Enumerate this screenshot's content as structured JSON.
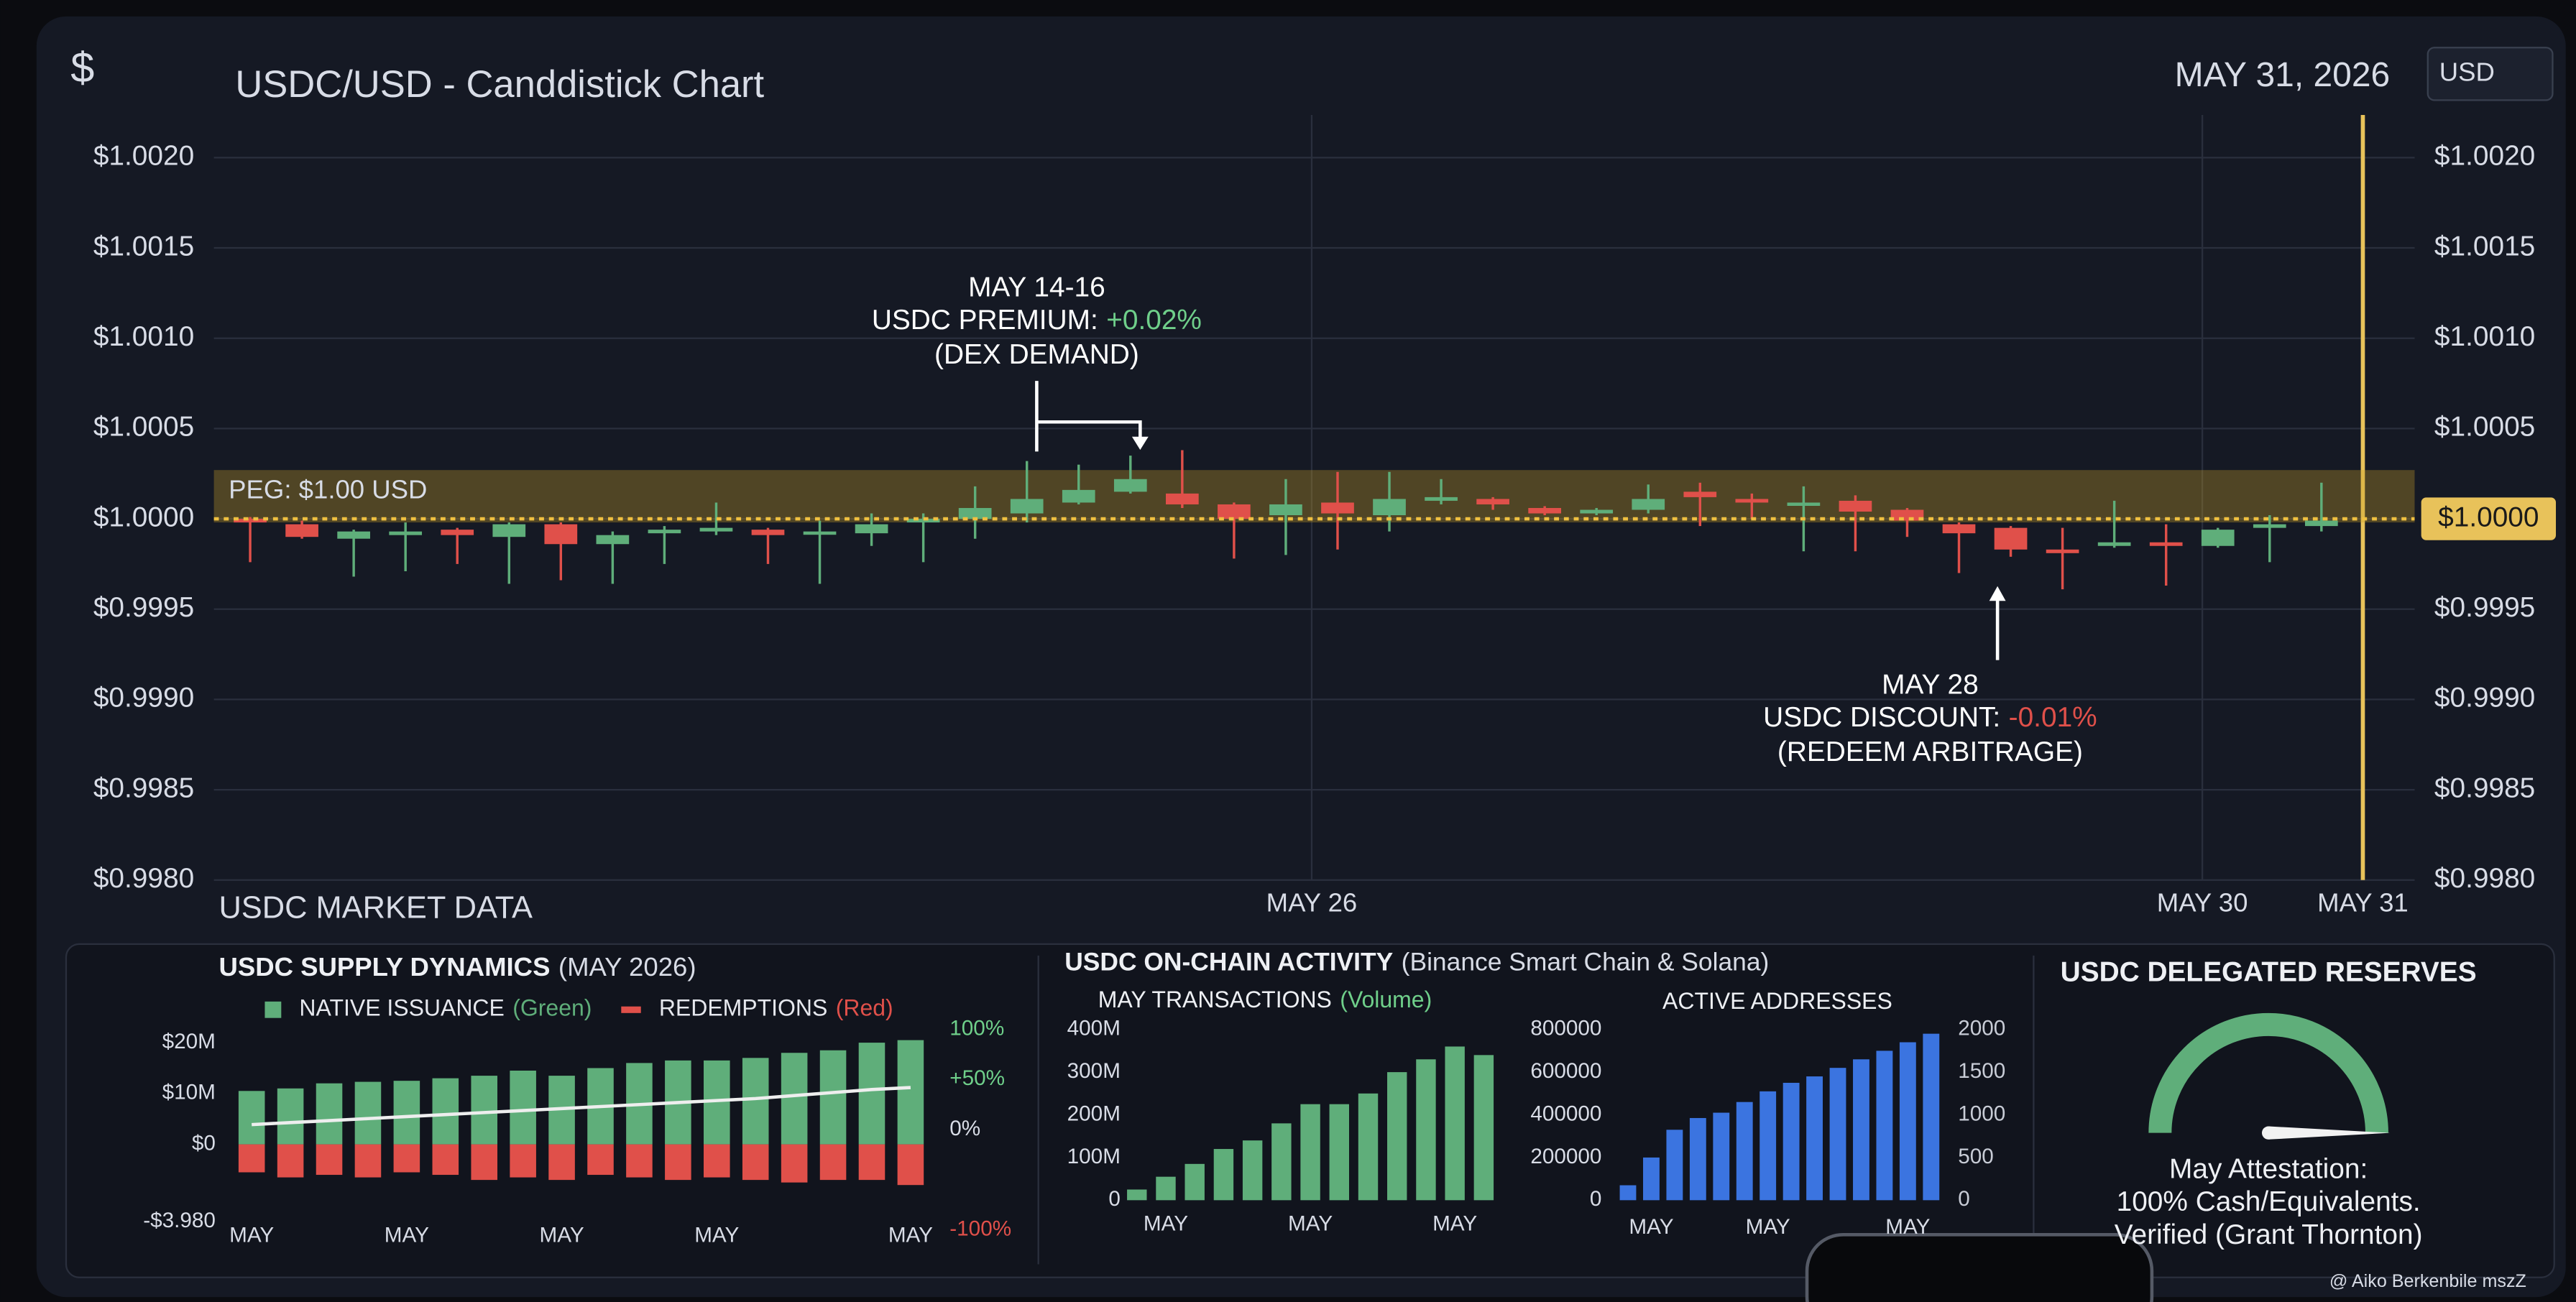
{
  "header": {
    "icon": "$",
    "title": "USDC/USD - Canddistick Chart",
    "date": "MAY 31, 2026",
    "currency": "USD"
  },
  "chart_data": [
    {
      "type": "candlestick",
      "categories": [
        null,
        null,
        null,
        null,
        null,
        null,
        null,
        null,
        null,
        null,
        null,
        null,
        null,
        null,
        null,
        null,
        null,
        null,
        null,
        null,
        null,
        null,
        null,
        null,
        null,
        null,
        null,
        null,
        null,
        null,
        null,
        null,
        null,
        null,
        null,
        null,
        null,
        null,
        null,
        null,
        null
      ],
      "open": [
        1.0,
        0.99997,
        0.99989,
        0.99991,
        0.99994,
        0.9999,
        0.99997,
        0.99986,
        0.99992,
        0.99993,
        0.99994,
        0.99992,
        0.99992,
        0.99998,
        1.0,
        1.00003,
        1.00009,
        1.00015,
        1.00014,
        1.00008,
        1.00002,
        1.00009,
        1.00002,
        1.0001,
        1.00011,
        1.00006,
        1.00003,
        1.00005,
        1.00015,
        1.00011,
        1.00008,
        1.0001,
        1.00005,
        0.99997,
        0.99995,
        0.99983,
        0.99985,
        0.99987,
        0.99985,
        0.99995,
        0.99996
      ],
      "high": [
        1.00001,
        0.99999,
        0.99994,
        0.99998,
        0.99995,
        0.99998,
        0.99998,
        0.99993,
        0.99996,
        1.00009,
        0.99995,
        0.99999,
        1.00003,
        1.00003,
        1.00018,
        1.00032,
        1.0003,
        1.00035,
        1.00038,
        1.00009,
        1.00022,
        1.00026,
        1.00026,
        1.00022,
        1.00012,
        1.00007,
        1.00006,
        1.00019,
        1.0002,
        1.00014,
        1.00018,
        1.00013,
        1.00006,
        0.99998,
        0.99996,
        0.99995,
        1.0001,
        0.99997,
        0.99995,
        1.00002,
        1.0002
      ],
      "low": [
        0.99976,
        0.99989,
        0.99968,
        0.99971,
        0.99975,
        0.99964,
        0.99966,
        0.99964,
        0.99975,
        0.99991,
        0.99975,
        0.99964,
        0.99985,
        0.99976,
        0.99989,
        0.99998,
        1.00008,
        1.00014,
        1.00006,
        0.99978,
        0.9998,
        0.99983,
        0.99993,
        1.00008,
        1.00005,
        1.00002,
        1.00002,
        1.00003,
        0.99996,
        1.0,
        0.99982,
        0.99982,
        0.9999,
        0.9997,
        0.99979,
        0.99961,
        0.99984,
        0.99963,
        0.99984,
        0.99976,
        0.99993
      ],
      "close": [
        0.99998,
        0.9999,
        0.99993,
        0.99993,
        0.99991,
        0.99997,
        0.99986,
        0.99991,
        0.99994,
        0.99995,
        0.99991,
        0.99993,
        0.99997,
        1.0,
        1.00006,
        1.00011,
        1.00016,
        1.00022,
        1.00008,
        1.0,
        1.00008,
        1.00003,
        1.00011,
        1.00012,
        1.00008,
        1.00003,
        1.00005,
        1.00011,
        1.00012,
        1.00009,
        1.00009,
        1.00004,
        0.99999,
        0.99992,
        0.99983,
        0.99981,
        0.99987,
        0.99985,
        0.99994,
        0.99997,
        0.99999
      ],
      "up_color": "#5fae7a",
      "down_color": "#e0504a",
      "section_label": "USDC MARKET DATA",
      "xlim": [
        -0.7,
        41.8
      ],
      "xticks": [
        {
          "value": 20.5,
          "label": "MAY 26"
        },
        {
          "value": 37.7,
          "label": "MAY 30"
        },
        {
          "value": 40.8,
          "label": "MAY 31"
        }
      ],
      "ylim": [
        0.998,
        1.002
      ],
      "yticks": [
        {
          "value": 1.002,
          "label": "$1.0020"
        },
        {
          "value": 1.0015,
          "label": "$1.0015"
        },
        {
          "value": 1.001,
          "label": "$1.0010"
        },
        {
          "value": 1.0005,
          "label": "$1.0005"
        },
        {
          "value": 1.0,
          "label": "$1.0000"
        },
        {
          "value": 0.9995,
          "label": "$0.9995"
        },
        {
          "value": 0.999,
          "label": "$0.9990"
        },
        {
          "value": 0.9985,
          "label": "$0.9985"
        },
        {
          "value": 0.998,
          "label": "$0.9980"
        }
      ],
      "y2lim": [
        0.998,
        1.002
      ],
      "y2ticks": [
        {
          "value": 1.002,
          "label": "$1.0020"
        },
        {
          "value": 1.0015,
          "label": "$1.0015"
        },
        {
          "value": 1.001,
          "label": "$1.0010"
        },
        {
          "value": 1.0005,
          "label": "$1.0005"
        },
        {
          "value": 0.9995,
          "label": "$0.9995"
        },
        {
          "value": 0.999,
          "label": "$0.9990"
        },
        {
          "value": 0.9985,
          "label": "$0.9985"
        },
        {
          "value": 0.998,
          "label": "$0.9980"
        }
      ],
      "grid": true,
      "peg": {
        "value": 1.0,
        "label": "PEG: $1.00 USD",
        "band": [
          0.99998,
          1.00027
        ],
        "color": "#e8c25a"
      },
      "last_price": {
        "value": 1.0,
        "label": "$1.0000",
        "color": "#e8c25a"
      },
      "annotations": [
        {
          "date": "MAY 14-16",
          "prefix": "USDC PREMIUM:",
          "change": "+0.02%",
          "note": "(DEX DEMAND)"
        },
        {
          "date": "MAY 28",
          "prefix": "USDC DISCOUNT:",
          "change": "-0.01%",
          "note": "(REDEEM ARBITRAGE)"
        }
      ]
    },
    {
      "type": "bar",
      "title": "USDC SUPPLY DYNAMICS",
      "subtitle": "(MAY 2026)",
      "categories": [
        "MAY",
        null,
        null,
        null,
        "MAY",
        null,
        null,
        null,
        "MAY",
        null,
        null,
        null,
        "MAY",
        null,
        null,
        null,
        null,
        "MAY"
      ],
      "series": [
        {
          "name": "NATIVE ISSUANCE",
          "name_note": "(Green)",
          "color": "#5fae7a",
          "values": [
            10.5,
            11,
            12,
            12.3,
            12.5,
            13,
            13.5,
            14.5,
            13.5,
            15,
            16,
            16.5,
            16.5,
            17,
            18,
            18.5,
            20,
            20.5
          ]
        },
        {
          "name": "REDEMPTIONS",
          "name_note": "(Red)",
          "color": "#e0504a",
          "values": [
            -5.5,
            -6.5,
            -6,
            -6.5,
            -5.5,
            -6,
            -7,
            -6.5,
            -7,
            -6,
            -6.5,
            -7,
            -6.5,
            -7,
            -7.5,
            -7,
            -7,
            -8
          ]
        }
      ],
      "line": {
        "color": "#eeeeee",
        "axis": "y2",
        "values": [
          5,
          7,
          9,
          11,
          13,
          15,
          17,
          19,
          21,
          23,
          25,
          27,
          29,
          31,
          34,
          37,
          40,
          42
        ]
      },
      "ylim": [
        -16.8,
        22.6
      ],
      "yticks": [
        {
          "value": 20,
          "label": "$20M"
        },
        {
          "value": 10,
          "label": "$10M"
        },
        {
          "value": 0,
          "label": "$0"
        }
      ],
      "y_min_label": "-$3.980",
      "y2lim": [
        -100,
        100
      ],
      "y2ticks": [
        {
          "value": 100,
          "label": "100%"
        },
        {
          "value": 50,
          "label": "+50%"
        },
        {
          "value": 0,
          "label": "0%"
        },
        {
          "value": -100,
          "label": "-100%"
        }
      ]
    },
    {
      "type": "bar",
      "title": "MAY TRANSACTIONS",
      "subtitle": "(Volume)",
      "categories": [
        null,
        "MAY",
        null,
        null,
        null,
        null,
        "MAY",
        null,
        null,
        null,
        null,
        "MAY",
        null
      ],
      "values": [
        25,
        55,
        85,
        120,
        140,
        180,
        225,
        225,
        250,
        300,
        330,
        360,
        340
      ],
      "color": "#5fae7a",
      "ylim": [
        0,
        400
      ],
      "yticks": [
        {
          "value": 400,
          "label": "400M"
        },
        {
          "value": 300,
          "label": "300M"
        },
        {
          "value": 200,
          "label": "200M"
        },
        {
          "value": 100,
          "label": "100M"
        },
        0
      ]
    },
    {
      "type": "bar",
      "title": "ACTIVE ADDRESSES",
      "categories": [
        null,
        "MAY",
        null,
        null,
        null,
        null,
        "MAY",
        null,
        null,
        null,
        null,
        null,
        "MAY",
        null
      ],
      "values": [
        70000,
        200000,
        330000,
        385000,
        410000,
        460000,
        510000,
        550000,
        580000,
        620000,
        660000,
        700000,
        740000,
        780000
      ],
      "color": "#3b74e0",
      "ylim": [
        0,
        800000
      ],
      "yticks": [
        800000,
        600000,
        400000,
        200000,
        0
      ],
      "y2lim": [
        0,
        2000
      ],
      "y2ticks": [
        2000,
        1500,
        1000,
        500,
        0
      ]
    },
    {
      "type": "gauge",
      "title": "USDC DELEGATED RESERVES",
      "value": 100,
      "range": [
        0,
        100
      ],
      "color": "#5fae7a",
      "caption": [
        "May Attestation:",
        "100% Cash/Equivalents.",
        "Verified (Grant Thornton)"
      ]
    }
  ],
  "onchain": {
    "title": "USDC ON-CHAIN ACTIVITY",
    "subtitle": "(Binance Smart Chain & Solana)"
  },
  "footer": {
    "credit": "@ Aiko Berkenbile mszZ"
  }
}
